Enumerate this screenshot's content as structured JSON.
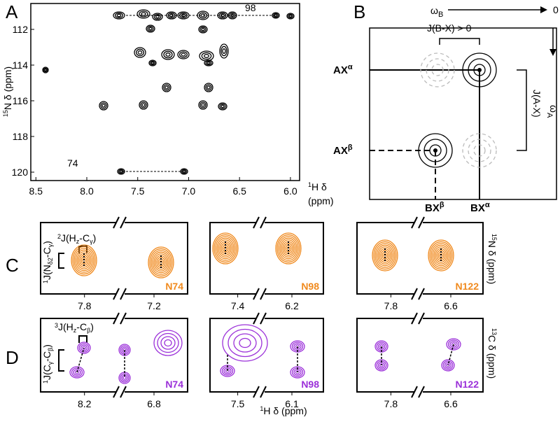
{
  "panels": {
    "A": {
      "label": "A",
      "y_axis_label": [
        "15",
        "N δ (ppm)"
      ],
      "x_axis_label": [
        "1",
        "H δ"
      ],
      "x_axis_unit": "(ppm)",
      "xlim": [
        8.55,
        5.91
      ],
      "xticks": [
        8.5,
        {
          "value": 8,
          "label": "8.0"
        },
        7.5,
        {
          "value": 7,
          "label": "7.0"
        },
        6.5,
        {
          "value": 6,
          "label": "6.0"
        }
      ],
      "ylim": [
        110.55,
        120.47
      ],
      "yticks": [
        112,
        114,
        116,
        118,
        120
      ],
      "annotations": [
        "98",
        "74"
      ]
    },
    "B": {
      "label": "B",
      "top_axis": [
        "ω",
        "B"
      ],
      "top_axis_end": "0",
      "right_axis": [
        "ω",
        "A"
      ],
      "coupling_bx": "J(B-X) > 0",
      "coupling_ax": "J(A-X)",
      "row_labels": [
        [
          "AX",
          "α"
        ],
        [
          "AX",
          "β"
        ]
      ],
      "column_labels": [
        [
          "BX",
          "β"
        ],
        [
          "BX",
          "α"
        ]
      ]
    },
    "C": {
      "label": "C",
      "coupling_top": [
        "2",
        "J(H",
        "z",
        "-C",
        "γ",
        ")"
      ],
      "coupling_side": [
        "1",
        "J(N",
        "δ2",
        "-C",
        "γ",
        ")"
      ],
      "axis_label": [
        "15",
        "N δ (ppm)"
      ],
      "residues": [
        "N74",
        "N98",
        "N122"
      ],
      "ticks": [
        [
          "7.8",
          "7.2"
        ],
        [
          "7.4",
          "6.2"
        ],
        [
          "7.8",
          "6.6"
        ]
      ]
    },
    "D": {
      "label": "D",
      "coupling_top": [
        "3",
        "J(H",
        "z",
        "-C",
        "β",
        ")"
      ],
      "coupling_side": [
        "1",
        "J(C",
        "γ",
        "-C",
        "β",
        ")"
      ],
      "axis_label": [
        "13",
        "C δ (ppm)"
      ],
      "x_axis_label": [
        "1",
        "H δ (ppm)"
      ],
      "residues": [
        "N74",
        "N98",
        "N122"
      ],
      "ticks": [
        [
          "8.2",
          "6.8"
        ],
        [
          "7.5",
          "6.1"
        ],
        [
          "7.8",
          "6.6"
        ]
      ]
    }
  }
}
